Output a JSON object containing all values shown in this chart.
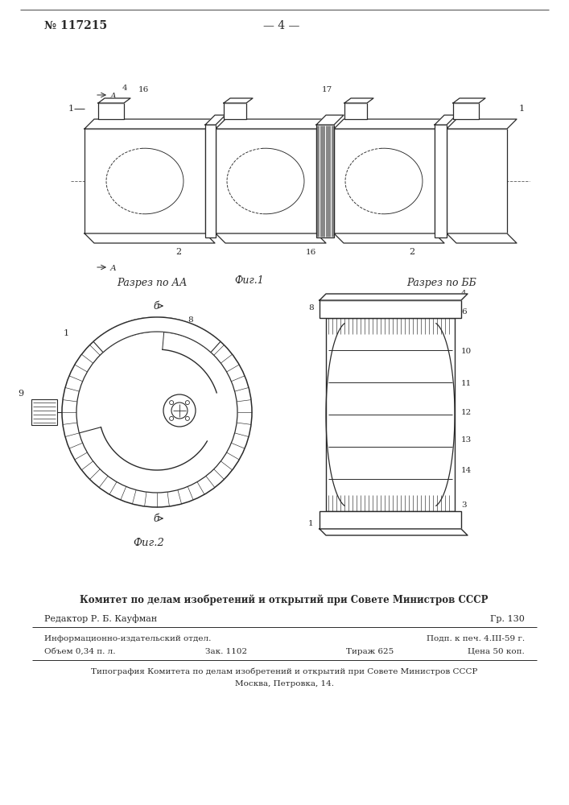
{
  "page_number": "№ 117215",
  "page_label": "— 4 —",
  "fig1_caption": "Фиг.1",
  "fig2_caption": "Фиг.2",
  "section_aa": "Разрез по АА",
  "section_bb": "Разрез по ББ",
  "footer_line1": "Комитет по делам изобретений и открытий при Совете Министров СССР",
  "footer_editor": "Редактор Р. Б. Кауфман",
  "footer_gr": "Гр. 130",
  "footer_info": "Информационно-издательский отдел.",
  "footer_podp": "Подп. к печ. 4.III-59 г.",
  "footer_obem": "Объем 0,34 п. л.",
  "footer_zak": "Зак. 1102",
  "footer_tirazh": "Тираж 625",
  "footer_cena": "Цена 50 коп.",
  "footer_tipograf": "Типография Комитета по делам изобретений и открытий при Совете Министров СССР",
  "footer_moscow": "Москва, Петровка, 14.",
  "bg_color": "#ffffff",
  "line_color": "#2a2a2a",
  "text_color": "#2a2a2a"
}
